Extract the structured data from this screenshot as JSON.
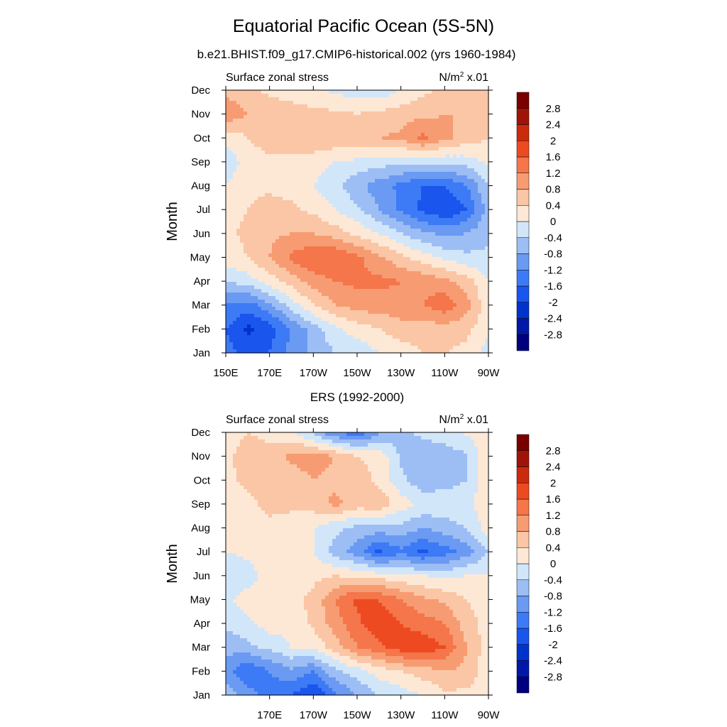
{
  "title": "Equatorial Pacific Ocean (5S-5N)",
  "subtitle": "b.e21.BHIST.f09_g17.CMIP6-historical.002 (yrs 1960-1984)",
  "chart_data": [
    {
      "type": "heatmap",
      "panel_title": "",
      "left_label": "Surface zonal stress",
      "units_base": "N/m",
      "units_exp": "2",
      "units_scale": " x.01",
      "ylabel": "Month",
      "xlabel": "",
      "x_tick_labels": [
        "150E",
        "170E",
        "170W",
        "150W",
        "130W",
        "110W",
        "90W"
      ],
      "x_ticks_deg_east": [
        150,
        170,
        190,
        210,
        230,
        250,
        270
      ],
      "xlim_deg_east": [
        150,
        270
      ],
      "y_tick_labels": [
        "Jan",
        "Feb",
        "Mar",
        "Apr",
        "May",
        "Jun",
        "Jul",
        "Aug",
        "Sep",
        "Oct",
        "Nov",
        "Dec"
      ],
      "grid_x": [
        150,
        160,
        170,
        180,
        190,
        200,
        210,
        220,
        230,
        240,
        250,
        260,
        270
      ],
      "grid_y": [
        "Jan",
        "Feb",
        "Mar",
        "Apr",
        "May",
        "Jun",
        "Jul",
        "Aug",
        "Sep",
        "Oct",
        "Nov",
        "Dec"
      ],
      "values": [
        [
          -1.4,
          -1.8,
          -1.6,
          -1.0,
          -0.7,
          -0.4,
          -0.3,
          0.0,
          0.2,
          0.4,
          0.4,
          0.3,
          -0.2
        ],
        [
          -1.6,
          -2.1,
          -1.8,
          -1.2,
          -0.6,
          -0.1,
          0.2,
          0.4,
          0.6,
          0.6,
          0.6,
          0.5,
          0.1
        ],
        [
          -1.2,
          -1.4,
          -0.9,
          -0.2,
          0.4,
          0.8,
          1.0,
          1.0,
          1.1,
          1.2,
          1.5,
          1.0,
          0.1
        ],
        [
          -0.4,
          -0.2,
          0.2,
          0.6,
          1.0,
          1.2,
          1.3,
          1.3,
          1.2,
          1.1,
          0.9,
          0.6,
          0.0
        ],
        [
          0.2,
          0.4,
          0.8,
          1.3,
          1.6,
          1.6,
          1.3,
          0.9,
          0.5,
          0.2,
          -0.1,
          -0.3,
          -0.3
        ],
        [
          0.3,
          0.5,
          0.7,
          0.8,
          0.8,
          0.6,
          0.3,
          0.0,
          -0.4,
          -0.7,
          -0.9,
          -0.8,
          -0.5
        ],
        [
          0.2,
          0.4,
          0.6,
          0.5,
          0.3,
          0.0,
          -0.3,
          -0.8,
          -1.3,
          -1.7,
          -2.0,
          -1.6,
          -0.6
        ],
        [
          0.0,
          0.3,
          0.3,
          0.2,
          0.0,
          -0.3,
          -0.7,
          -1.0,
          -1.3,
          -1.6,
          -1.6,
          -1.2,
          -0.4
        ],
        [
          -0.3,
          0.2,
          0.3,
          0.3,
          0.2,
          0.0,
          -0.1,
          -0.2,
          -0.3,
          -0.3,
          -0.3,
          -0.2,
          0.1
        ],
        [
          0.1,
          0.4,
          0.6,
          0.7,
          0.7,
          0.7,
          0.8,
          0.8,
          0.9,
          1.3,
          0.9,
          0.6,
          0.4
        ],
        [
          1.1,
          0.8,
          0.7,
          0.6,
          0.5,
          0.5,
          0.4,
          0.5,
          0.6,
          0.7,
          0.8,
          0.8,
          0.8
        ],
        [
          0.7,
          0.5,
          0.3,
          0.2,
          0.1,
          -0.1,
          -0.2,
          -0.3,
          0.0,
          0.3,
          0.5,
          0.6,
          0.6
        ]
      ]
    },
    {
      "type": "heatmap",
      "panel_title": "ERS (1992-2000)",
      "left_label": "Surface zonal stress",
      "units_base": "N/m",
      "units_exp": "2",
      "units_scale": " x.01",
      "ylabel": "Month",
      "xlabel": "",
      "x_tick_labels": [
        "170E",
        "170W",
        "150W",
        "130W",
        "110W",
        "90W"
      ],
      "x_ticks_deg_east": [
        170,
        190,
        210,
        230,
        250,
        270
      ],
      "xlim_deg_east": [
        150,
        270
      ],
      "y_tick_labels": [
        "Jan",
        "Feb",
        "Mar",
        "Apr",
        "May",
        "Jun",
        "Jul",
        "Aug",
        "Sep",
        "Oct",
        "Nov",
        "Dec"
      ],
      "grid_x": [
        150,
        160,
        170,
        180,
        190,
        200,
        210,
        220,
        230,
        240,
        250,
        260,
        270
      ],
      "grid_y": [
        "Jan",
        "Feb",
        "Mar",
        "Apr",
        "May",
        "Jun",
        "Jul",
        "Aug",
        "Sep",
        "Oct",
        "Nov",
        "Dec"
      ],
      "values": [
        [
          -0.6,
          -1.0,
          -1.4,
          -1.6,
          -2.0,
          -1.3,
          -0.8,
          -0.4,
          -0.2,
          0.0,
          0.3,
          0.3,
          0.2
        ],
        [
          -1.0,
          -1.6,
          -1.2,
          -0.9,
          -1.2,
          -0.5,
          -0.2,
          0.2,
          0.4,
          0.6,
          0.8,
          0.7,
          0.1
        ],
        [
          -0.7,
          -0.5,
          -0.3,
          0.0,
          0.1,
          0.6,
          1.2,
          1.5,
          1.8,
          1.9,
          1.6,
          0.8,
          0.2
        ],
        [
          -0.3,
          -0.1,
          0.2,
          0.1,
          0.5,
          1.0,
          1.5,
          1.9,
          1.6,
          1.4,
          1.2,
          0.6,
          0.2
        ],
        [
          -0.1,
          0.2,
          0.1,
          0.3,
          0.5,
          1.2,
          1.7,
          1.6,
          1.2,
          0.9,
          0.7,
          0.4,
          0.2
        ],
        [
          -0.4,
          -0.2,
          0.2,
          0.2,
          0.3,
          0.4,
          0.3,
          0.2,
          0.1,
          0.0,
          -0.1,
          0.0,
          0.0
        ],
        [
          0.0,
          0.1,
          0.2,
          0.3,
          0.0,
          -0.6,
          -1.0,
          -1.7,
          -1.3,
          -1.7,
          -1.4,
          -1.0,
          -0.4
        ],
        [
          0.0,
          0.2,
          0.3,
          0.2,
          0.0,
          -0.3,
          -0.5,
          -0.6,
          -0.5,
          -0.8,
          -0.6,
          -0.4,
          0.2
        ],
        [
          0.2,
          0.3,
          0.5,
          0.5,
          0.6,
          0.9,
          0.6,
          0.7,
          0.2,
          -0.1,
          -0.1,
          -0.1,
          0.3
        ],
        [
          0.3,
          0.5,
          0.7,
          0.6,
          0.8,
          0.7,
          0.6,
          0.3,
          -0.3,
          -0.7,
          -0.6,
          -0.4,
          0.3
        ],
        [
          0.3,
          0.6,
          0.5,
          0.9,
          1.0,
          0.8,
          0.4,
          0.3,
          -0.5,
          -0.7,
          -0.6,
          -0.5,
          0.4
        ],
        [
          0.2,
          0.4,
          0.3,
          0.1,
          -0.5,
          -1.2,
          -1.5,
          -0.9,
          -0.5,
          -0.3,
          -0.2,
          0.1,
          0.2
        ]
      ]
    }
  ],
  "colorbar": {
    "levels": [
      -2.8,
      -2.4,
      -2.0,
      -1.6,
      -1.2,
      -0.8,
      -0.4,
      0.0,
      0.4,
      0.8,
      1.2,
      1.6,
      2.0,
      2.4,
      2.8
    ],
    "labels": [
      "-2.8",
      "-2.4",
      "-2",
      "-1.6",
      "-1.2",
      "-0.8",
      "-0.4",
      "0",
      "0.4",
      "0.8",
      "1.2",
      "1.6",
      "2",
      "2.4",
      "2.8"
    ],
    "colors": [
      "#00007f",
      "#0018a8",
      "#0033cc",
      "#1a55ee",
      "#3d7af5",
      "#6a9af2",
      "#9dbef5",
      "#d2e6f9",
      "#fde8d6",
      "#fbc6a5",
      "#f79c72",
      "#f4764a",
      "#ee4a22",
      "#cc2a0c",
      "#a01407",
      "#7a0000"
    ]
  }
}
